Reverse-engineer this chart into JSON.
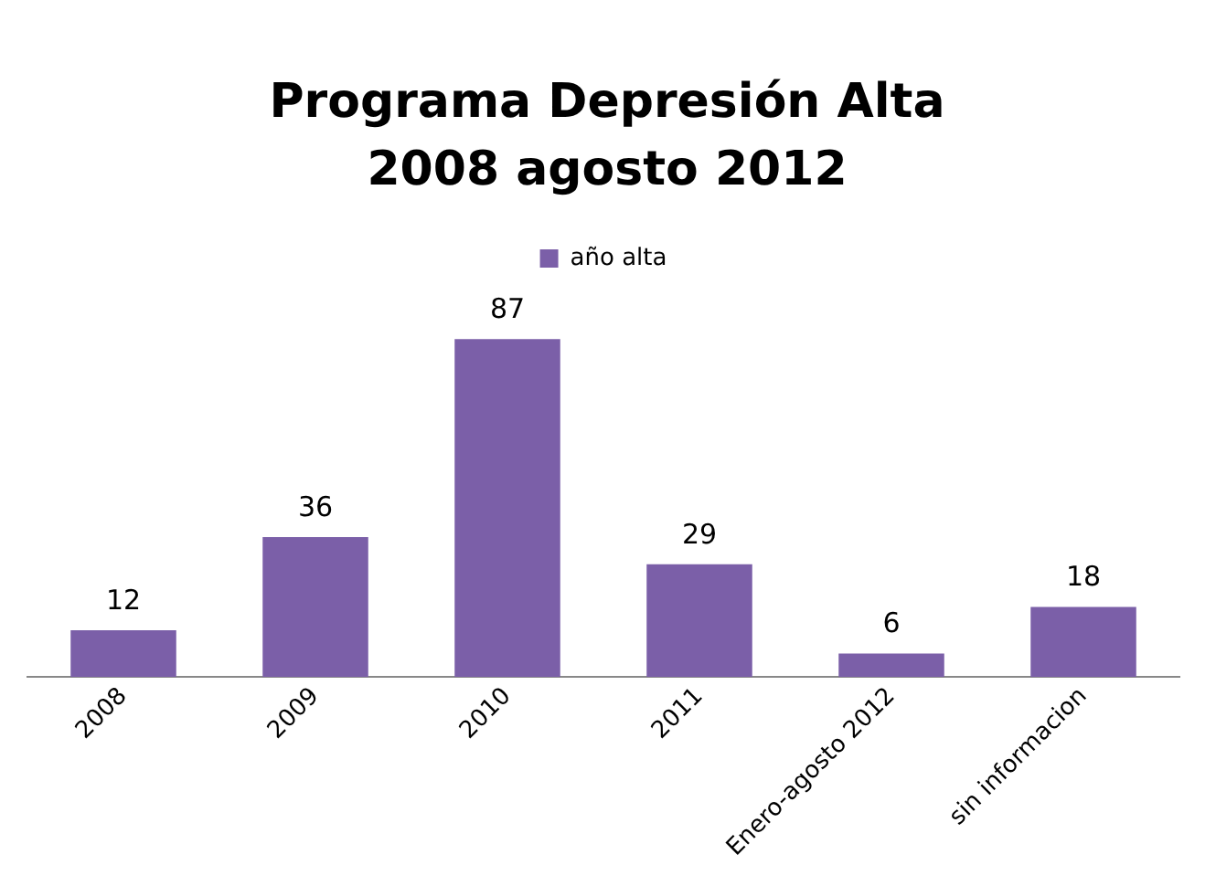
{
  "chart_data": {
    "type": "bar",
    "title": "Programa Depresión Alta 2008 agosto 2012",
    "categories": [
      "2008",
      "2009",
      "2010",
      "2011",
      "Enero-agosto 2012",
      "sin informacion"
    ],
    "series": [
      {
        "name": "año alta",
        "color": "#7b5fa8",
        "values": [
          12,
          36,
          87,
          29,
          6,
          18
        ]
      }
    ],
    "data_labels": true,
    "legend": "top",
    "grid": false
  }
}
